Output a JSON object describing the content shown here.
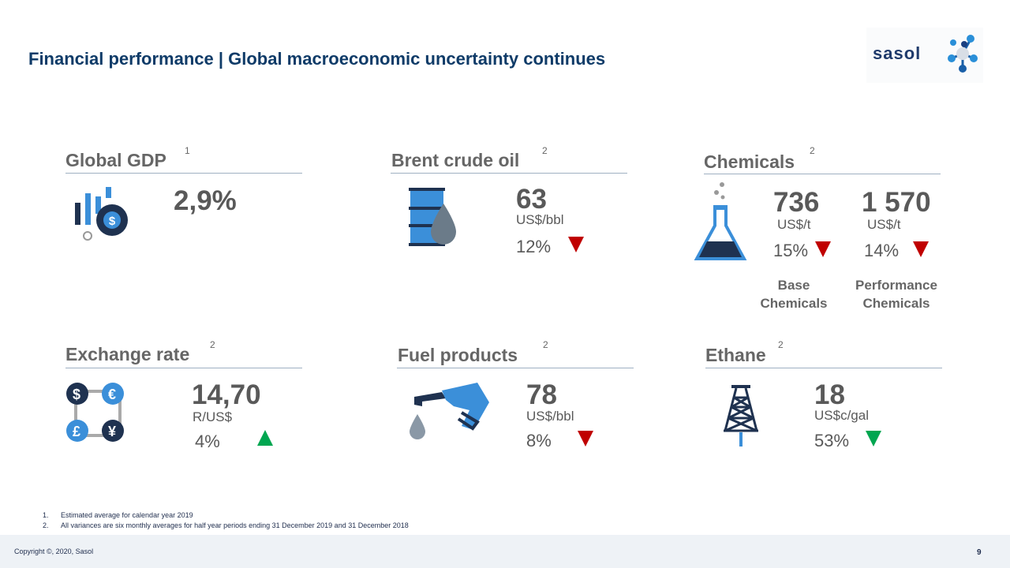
{
  "title": "Financial performance | Global macroeconomic uncertainty continues",
  "logo": "sasol",
  "sections": {
    "gdp": {
      "heading": "Global GDP",
      "sup": "1",
      "value": "2,9%"
    },
    "brent": {
      "heading": "Brent crude oil",
      "sup": "2",
      "value": "63",
      "unit": "US$/bbl",
      "change": "12%",
      "direction": "down"
    },
    "chemicals": {
      "heading": "Chemicals",
      "sup": "2",
      "base": {
        "value": "736",
        "unit": "US$/t",
        "change": "15%",
        "direction": "down",
        "label": "Base Chemicals"
      },
      "performance": {
        "value": "1 570",
        "unit": "US$/t",
        "change": "14%",
        "direction": "down",
        "label": "Performance Chemicals"
      }
    },
    "exchange": {
      "heading": "Exchange rate",
      "sup": "2",
      "value": "14,70",
      "unit": "R/US$",
      "change": "4%",
      "direction": "up"
    },
    "fuel": {
      "heading": "Fuel products",
      "sup": "2",
      "value": "78",
      "unit": "US$/bbl",
      "change": "8%",
      "direction": "down"
    },
    "ethane": {
      "heading": "Ethane",
      "sup": "2",
      "value": "18",
      "unit": "US$c/gal",
      "change": "53%",
      "direction": "down"
    }
  },
  "currency_symbols": [
    "$",
    "€",
    "£",
    "¥"
  ],
  "footnotes": [
    "1.",
    "Estimated average for calendar year 2019",
    "2.",
    "All variances are six monthly averages for half year periods ending 31 December 2019 and 31 December 2018"
  ],
  "footer": {
    "copyright": "Copyright ©, 2020, Sasol",
    "page": "9"
  },
  "colors": {
    "title": "#0f3b68",
    "down": "#c00000",
    "up": "#00a650",
    "icon_blue": "#3b8fd9",
    "icon_navy": "#1f3250"
  }
}
